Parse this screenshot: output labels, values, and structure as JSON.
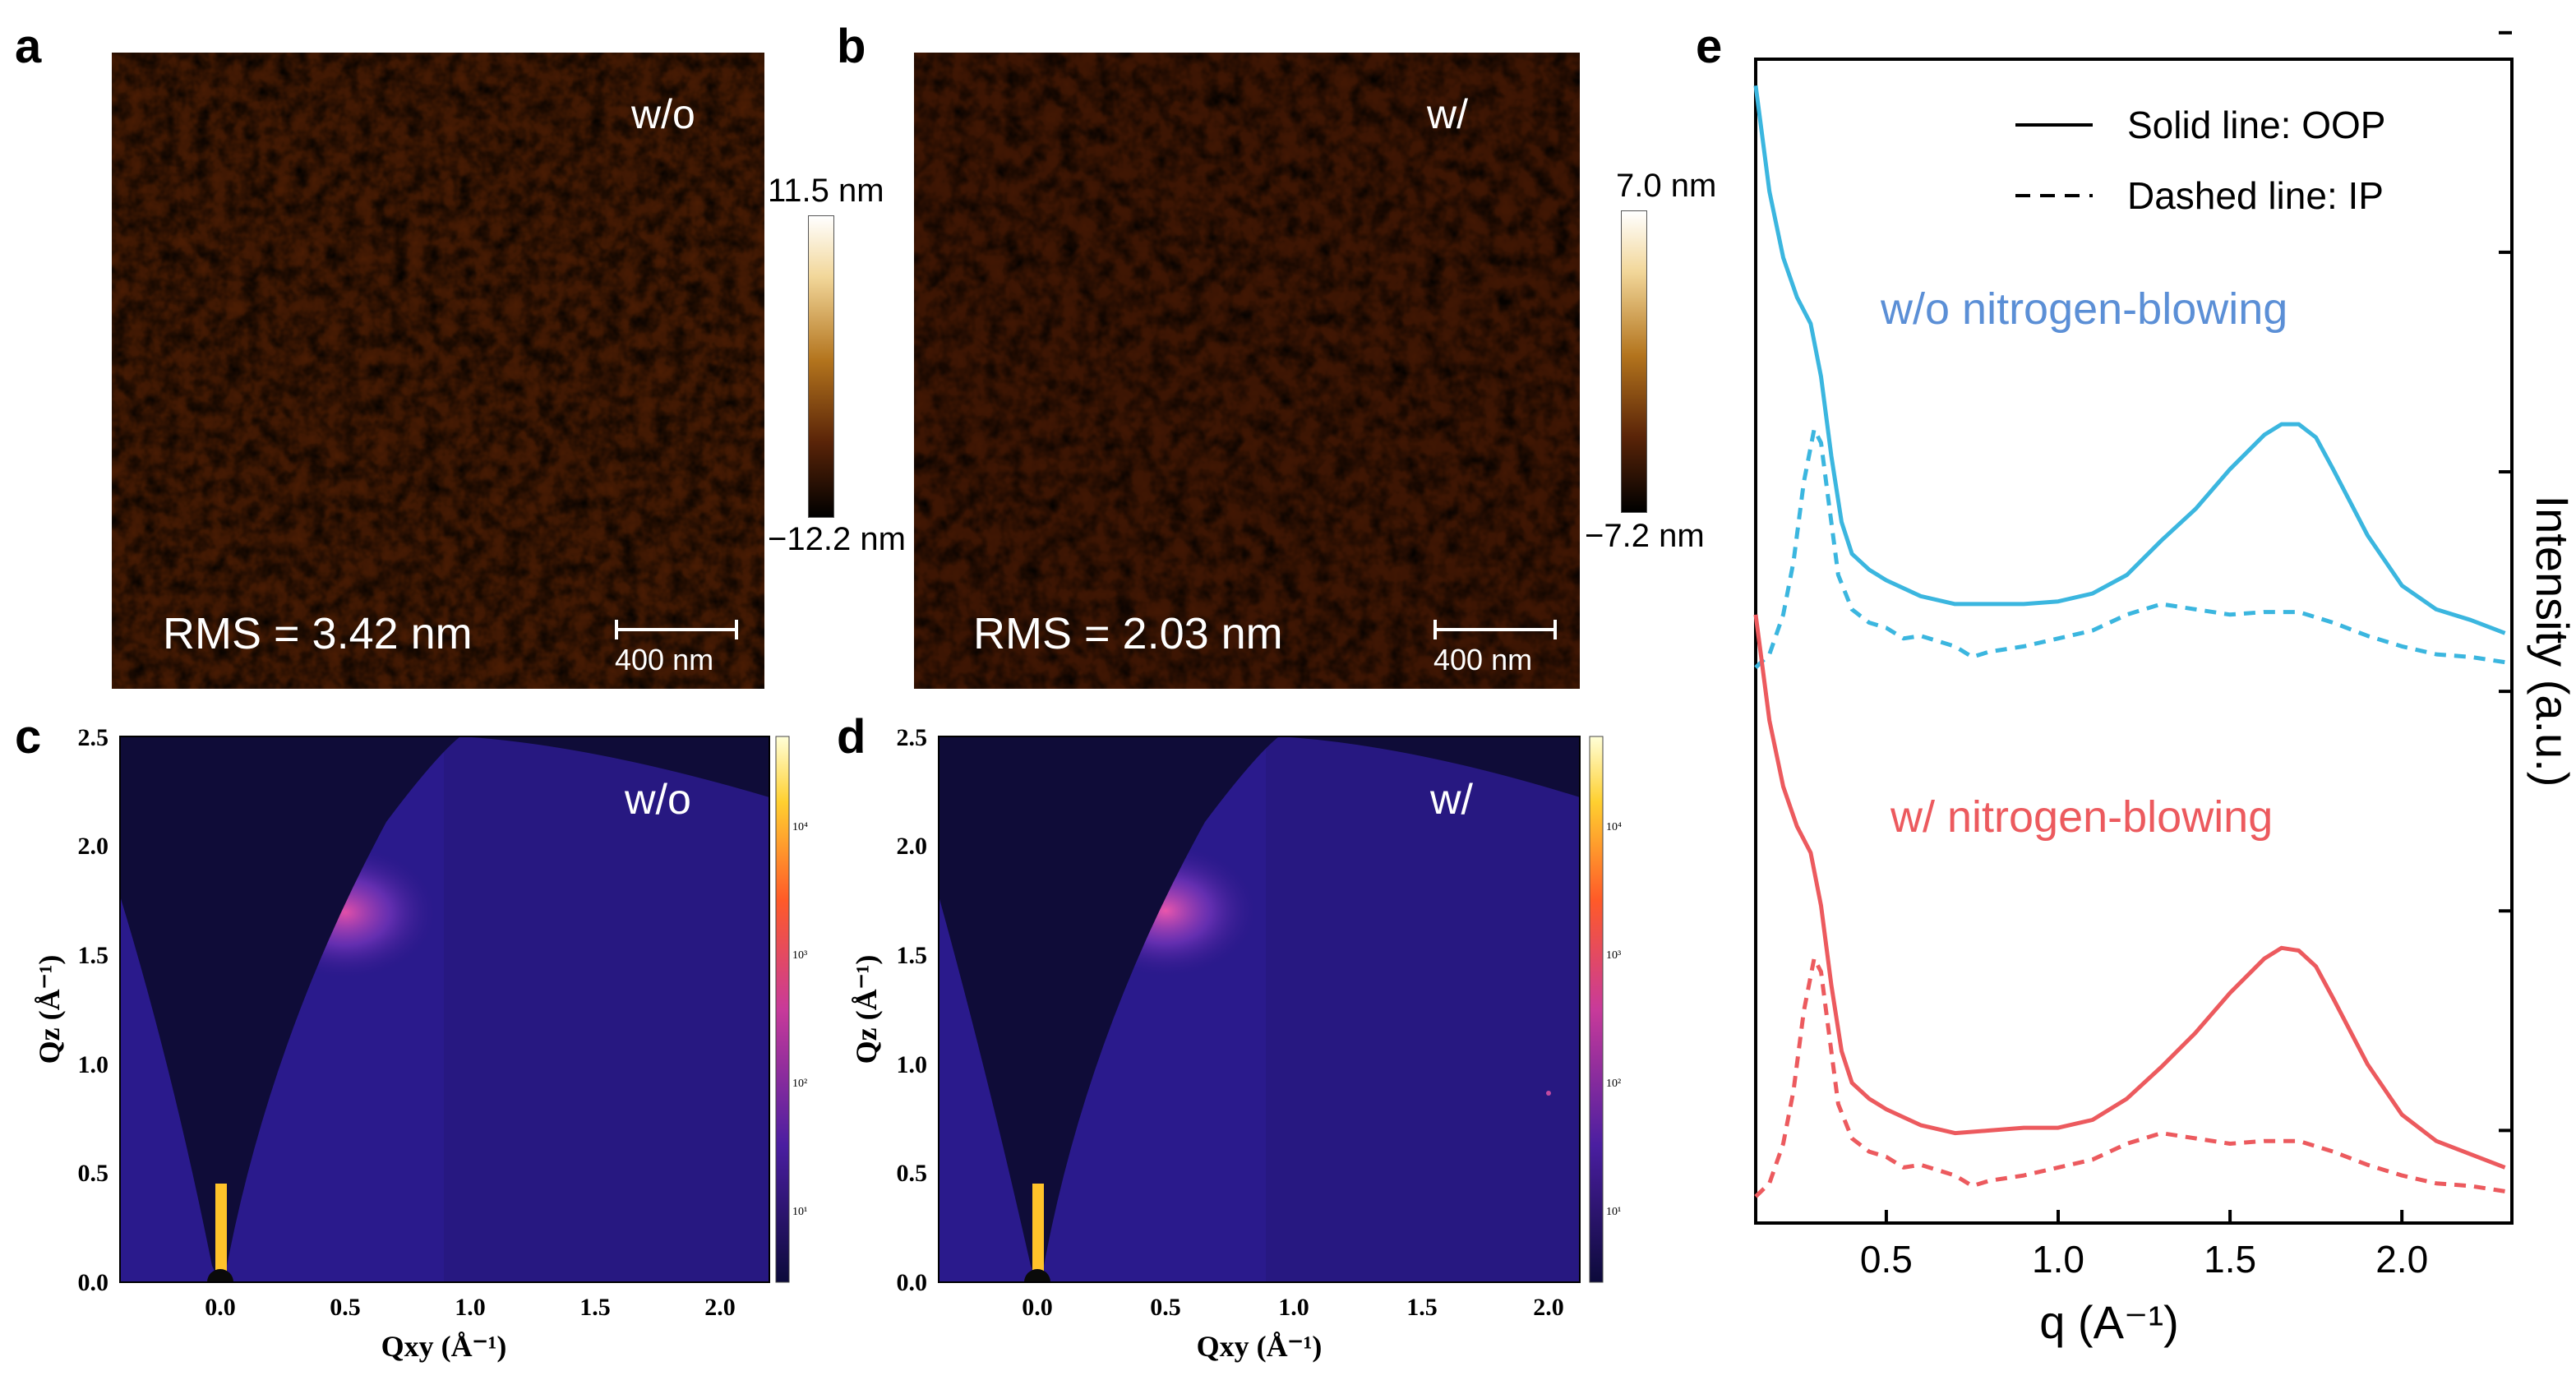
{
  "panel_labels": {
    "a": "a",
    "b": "b",
    "c": "c",
    "d": "d",
    "e": "e"
  },
  "panel_a": {
    "tag": "w/o",
    "rms": "RMS = 3.42 nm",
    "scalebar": "400 nm",
    "colorbar_max": "11.5 nm",
    "colorbar_min": "−12.2 nm"
  },
  "panel_b": {
    "tag": "w/",
    "rms": "RMS = 2.03 nm",
    "scalebar": "400 nm",
    "colorbar_max": "7.0 nm",
    "colorbar_min": "−7.2 nm"
  },
  "panel_c": {
    "tag": "w/o",
    "xlabel": "Qxy (Å⁻¹)",
    "ylabel": "Qz (Å⁻¹)",
    "xticks": [
      "0.0",
      "0.5",
      "1.0",
      "1.5",
      "2.0"
    ],
    "yticks": [
      "0.0",
      "0.5",
      "1.0",
      "1.5",
      "2.0",
      "2.5"
    ],
    "cbar_ticks": [
      "10⁴",
      "10³",
      "10²",
      "10¹"
    ]
  },
  "panel_d": {
    "tag": "w/",
    "xlabel": "Qxy (Å⁻¹)",
    "ylabel": "Qz (Å⁻¹)",
    "xticks": [
      "0.0",
      "0.5",
      "1.0",
      "1.5",
      "2.0"
    ],
    "yticks": [
      "0.0",
      "0.5",
      "1.0",
      "1.5",
      "2.0",
      "2.5"
    ],
    "cbar_ticks": [
      "10⁴",
      "10³",
      "10²",
      "10¹"
    ]
  },
  "colors": {
    "blue": "#3bb6df",
    "blue_text": "#5b8fd6",
    "red": "#ec5a5e",
    "afm_dark": "#3a1400",
    "afm_mid": "#a3600e",
    "afm_light": "#f3dca0"
  },
  "chart_data": {
    "type": "line",
    "title": "",
    "xlabel": "q (A⁻¹)",
    "ylabel": "Intensity (a.u.)",
    "xlim": [
      0.12,
      2.32
    ],
    "xticks": [
      "0.5",
      "1.0",
      "1.5",
      "2.0"
    ],
    "legend": {
      "position": "top-right",
      "entries": [
        {
          "style": "solid",
          "label": "Solid line: OOP"
        },
        {
          "style": "dashed",
          "label": "Dashed line: IP"
        }
      ]
    },
    "annotations": [
      {
        "text": "w/o nitrogen-blowing",
        "color": "#5b8fd6"
      },
      {
        "text": "w/ nitrogen-blowing",
        "color": "#ec5a5e"
      }
    ],
    "series": [
      {
        "group": "w/o nitrogen-blowing",
        "direction": "OOP",
        "style": "solid",
        "color": "#3bb6df",
        "x": [
          0.12,
          0.16,
          0.2,
          0.24,
          0.28,
          0.31,
          0.34,
          0.37,
          0.4,
          0.45,
          0.5,
          0.6,
          0.7,
          0.8,
          0.9,
          1.0,
          1.1,
          1.2,
          1.3,
          1.4,
          1.5,
          1.6,
          1.65,
          1.7,
          1.75,
          1.8,
          1.9,
          2.0,
          2.1,
          2.2,
          2.3
        ],
        "y": [
          3.95,
          3.55,
          3.3,
          3.15,
          3.05,
          2.85,
          2.55,
          2.3,
          2.18,
          2.12,
          2.08,
          2.02,
          1.99,
          1.99,
          1.99,
          2.0,
          2.03,
          2.1,
          2.23,
          2.35,
          2.5,
          2.63,
          2.67,
          2.67,
          2.62,
          2.5,
          2.25,
          2.06,
          1.97,
          1.93,
          1.88
        ]
      },
      {
        "group": "w/o nitrogen-blowing",
        "direction": "IP",
        "style": "dashed",
        "color": "#3bb6df",
        "x": [
          0.12,
          0.16,
          0.2,
          0.23,
          0.26,
          0.29,
          0.31,
          0.33,
          0.36,
          0.4,
          0.45,
          0.5,
          0.55,
          0.6,
          0.7,
          0.75,
          0.8,
          0.9,
          1.0,
          1.1,
          1.2,
          1.3,
          1.4,
          1.5,
          1.6,
          1.7,
          1.8,
          1.9,
          2.0,
          2.1,
          2.2,
          2.3
        ],
        "y": [
          1.75,
          1.8,
          1.95,
          2.15,
          2.45,
          2.65,
          2.6,
          2.4,
          2.1,
          1.97,
          1.92,
          1.9,
          1.86,
          1.87,
          1.83,
          1.79,
          1.81,
          1.83,
          1.86,
          1.89,
          1.95,
          1.99,
          1.97,
          1.95,
          1.96,
          1.96,
          1.92,
          1.87,
          1.83,
          1.8,
          1.79,
          1.77
        ]
      },
      {
        "group": "w/ nitrogen-blowing",
        "direction": "OOP",
        "style": "solid",
        "color": "#ec5a5e",
        "x": [
          0.12,
          0.16,
          0.2,
          0.24,
          0.28,
          0.31,
          0.34,
          0.37,
          0.4,
          0.45,
          0.5,
          0.6,
          0.7,
          0.8,
          0.9,
          1.0,
          1.1,
          1.2,
          1.3,
          1.4,
          1.5,
          1.6,
          1.65,
          1.7,
          1.75,
          1.8,
          1.9,
          2.0,
          2.1,
          2.2,
          2.3
        ],
        "y": [
          1.95,
          1.55,
          1.3,
          1.15,
          1.05,
          0.85,
          0.55,
          0.3,
          0.18,
          0.12,
          0.08,
          0.02,
          -0.01,
          0.0,
          0.01,
          0.01,
          0.04,
          0.12,
          0.24,
          0.37,
          0.52,
          0.65,
          0.69,
          0.68,
          0.62,
          0.5,
          0.25,
          0.06,
          -0.04,
          -0.09,
          -0.14
        ]
      },
      {
        "group": "w/ nitrogen-blowing",
        "direction": "IP",
        "style": "dashed",
        "color": "#ec5a5e",
        "x": [
          0.12,
          0.16,
          0.2,
          0.23,
          0.26,
          0.29,
          0.31,
          0.33,
          0.36,
          0.4,
          0.45,
          0.5,
          0.55,
          0.6,
          0.7,
          0.75,
          0.8,
          0.9,
          1.0,
          1.1,
          1.2,
          1.3,
          1.4,
          1.5,
          1.6,
          1.7,
          1.8,
          1.9,
          2.0,
          2.1,
          2.2,
          2.3
        ],
        "y": [
          -0.25,
          -0.2,
          -0.05,
          0.15,
          0.45,
          0.65,
          0.6,
          0.4,
          0.1,
          -0.03,
          -0.08,
          -0.1,
          -0.14,
          -0.13,
          -0.17,
          -0.21,
          -0.19,
          -0.17,
          -0.14,
          -0.11,
          -0.05,
          -0.01,
          -0.03,
          -0.05,
          -0.04,
          -0.04,
          -0.08,
          -0.13,
          -0.17,
          -0.2,
          -0.21,
          -0.23
        ]
      }
    ]
  }
}
